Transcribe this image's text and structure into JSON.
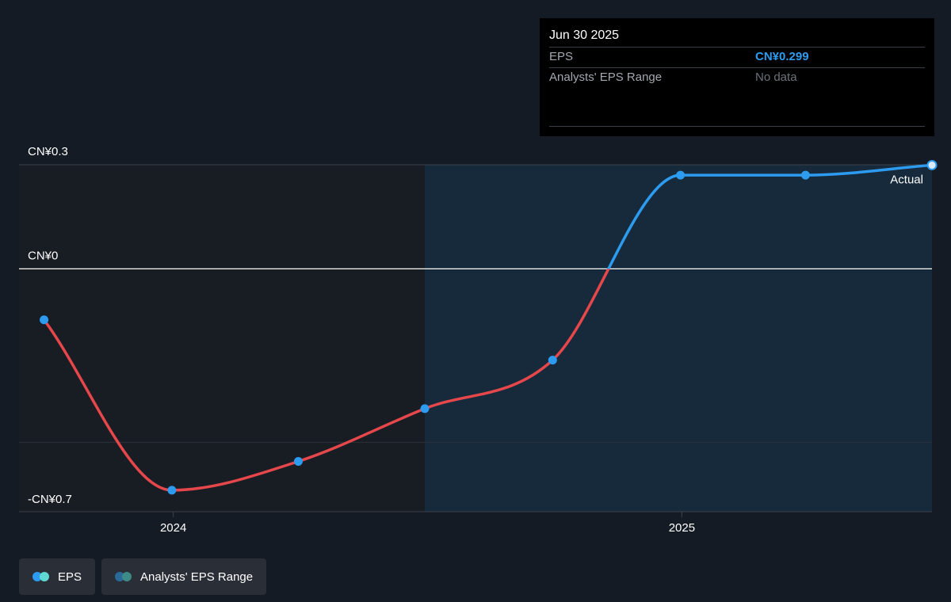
{
  "chart_data": {
    "type": "line",
    "series": [
      {
        "name": "EPS",
        "x": [
          "2023-09-30",
          "2023-12-31",
          "2024-03-31",
          "2024-06-30",
          "2024-09-30",
          "2024-12-31",
          "2025-03-31",
          "2025-06-30"
        ],
        "values": [
          -0.147,
          -0.638,
          -0.555,
          -0.403,
          -0.263,
          0.27,
          0.27,
          0.299
        ]
      }
    ],
    "y_ticks": [
      {
        "value": 0.3,
        "label": "CN¥0.3"
      },
      {
        "value": 0,
        "label": "CN¥0"
      },
      {
        "value": -0.7,
        "label": "-CN¥0.7"
      }
    ],
    "ylim": [
      -0.7,
      0.3
    ],
    "x_ticks": [
      {
        "value": "2024-01-01",
        "label": "2024"
      },
      {
        "value": "2025-01-01",
        "label": "2025"
      }
    ],
    "xlim": [
      "2023-09-12",
      "2025-06-30"
    ],
    "forecast_region_start": "2024-06-30",
    "annotation": "Actual",
    "colors": {
      "negative": "#e5474b",
      "positive": "#2d9cf0",
      "range_dot_1": "#2d9cf0",
      "range_dot_2": "#5fdad0"
    },
    "legend_position": "bottom-left"
  },
  "tooltip": {
    "date": "Jun 30 2025",
    "rows": [
      {
        "label": "EPS",
        "value": "CN¥0.299"
      },
      {
        "label": "Analysts' EPS Range",
        "value": "No data"
      }
    ]
  },
  "legend": [
    {
      "label": "EPS",
      "colors": [
        "#2d9cf0",
        "#5fdad0"
      ]
    },
    {
      "label": "Analysts' EPS Range",
      "colors": [
        "#2a6a98",
        "#3e8a86"
      ]
    }
  ]
}
